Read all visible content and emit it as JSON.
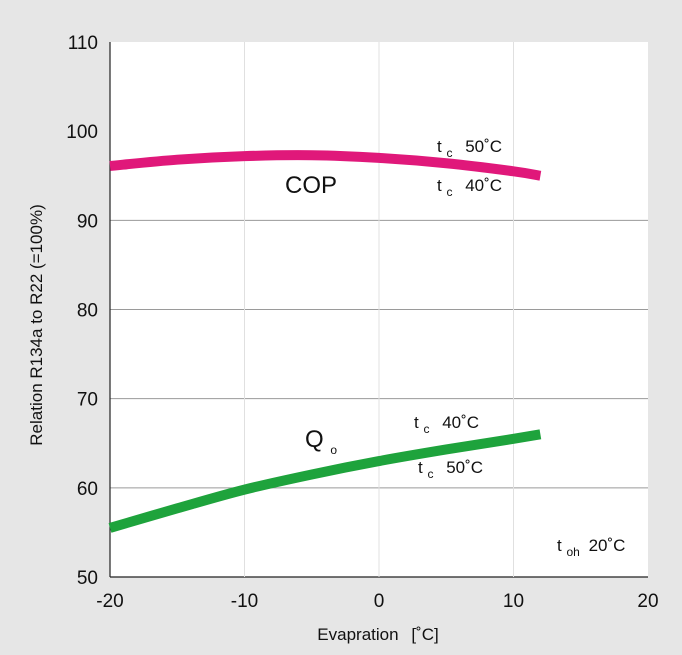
{
  "chart_data": {
    "type": "line",
    "title": "",
    "xlabel": "Evapration",
    "xlabel_unit": "[˚C]",
    "ylabel": "Relation R134a to R22 (=100%)",
    "xlim": [
      -20,
      20
    ],
    "ylim": [
      50,
      110
    ],
    "x_ticks": [
      "-20",
      "-10",
      "0",
      "10",
      "20"
    ],
    "y_ticks": [
      "50",
      "60",
      "70",
      "80",
      "90",
      "100",
      "110"
    ],
    "grid": "horizontal",
    "series": [
      {
        "name": "COP",
        "color": "#e0187a",
        "x": [
          -20,
          -15,
          -10,
          -5,
          0,
          5,
          10,
          12
        ],
        "y": [
          96.1,
          96.8,
          97.2,
          97.3,
          97.0,
          96.4,
          95.5,
          95.0
        ]
      },
      {
        "name": "Q",
        "name_sub": "o",
        "color": "#1ea33c",
        "x": [
          -20,
          -15,
          -10,
          -5,
          0,
          5,
          10,
          12
        ],
        "y": [
          55.5,
          57.7,
          59.8,
          61.5,
          63.0,
          64.3,
          65.5,
          66.0
        ]
      }
    ],
    "annotations": [
      {
        "id": "cop_tc50",
        "t": "t",
        "sub": "c",
        "text": "50˚C"
      },
      {
        "id": "cop_tc40",
        "t": "t",
        "sub": "c",
        "text": "40˚C"
      },
      {
        "id": "qo_tc40",
        "t": "t",
        "sub": "c",
        "text": "40˚C"
      },
      {
        "id": "qo_tc50",
        "t": "t",
        "sub": "c",
        "text": "50˚C"
      },
      {
        "id": "toh",
        "t": "t",
        "sub": "oh",
        "text": "20˚C"
      }
    ]
  }
}
